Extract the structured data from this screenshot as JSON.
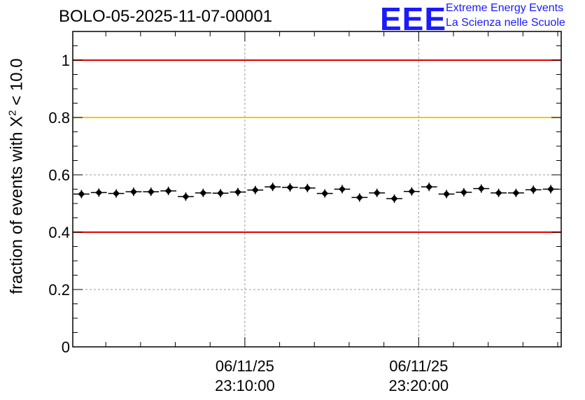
{
  "header": {
    "title": "BOLO-05-2025-11-07-00001",
    "logo_text": "EEE",
    "logo_line1": "Extreme Energy Events",
    "logo_line2": "La Scienza nelle Scuole"
  },
  "colors": {
    "threshold_red": "#e00000",
    "threshold_yellow": "#ffc000",
    "points": "#000000",
    "logo_blue": "#1a1aff",
    "grid": "#999999"
  },
  "chart_data": {
    "type": "scatter",
    "ylabel": {
      "prefix": "fraction of events with X",
      "superscript": "2",
      "suffix": " < 10.0"
    },
    "ylim": [
      0,
      1.1
    ],
    "yticks": [
      "0",
      "0.2",
      "0.4",
      "0.6",
      "0.8",
      "1"
    ],
    "ytick_values": [
      0,
      0.2,
      0.4,
      0.6,
      0.8,
      1.0
    ],
    "xlim_minutes": [
      -9.9,
      18.2
    ],
    "xticks": [
      {
        "minute": 0,
        "date": "06/11/25",
        "time": "23:10:00"
      },
      {
        "minute": 10,
        "date": "06/11/25",
        "time": "23:20:00"
      }
    ],
    "x_bin_minutes": 1,
    "horizontal_lines": [
      {
        "y": 1.0,
        "color": "red"
      },
      {
        "y": 0.8,
        "color": "yellow"
      },
      {
        "y": 0.4,
        "color": "red"
      }
    ],
    "grid": true,
    "x_minutes": [
      -9.4,
      -8.4,
      -7.4,
      -6.4,
      -5.4,
      -4.4,
      -3.4,
      -2.4,
      -1.4,
      -0.4,
      0.6,
      1.6,
      2.6,
      3.6,
      4.6,
      5.6,
      6.6,
      7.6,
      8.6,
      9.6,
      10.6,
      11.6,
      12.6,
      13.6,
      14.6,
      15.6,
      16.6,
      17.6
    ],
    "values": [
      0.533,
      0.538,
      0.535,
      0.541,
      0.541,
      0.544,
      0.524,
      0.537,
      0.536,
      0.54,
      0.547,
      0.558,
      0.556,
      0.554,
      0.535,
      0.55,
      0.521,
      0.537,
      0.517,
      0.542,
      0.558,
      0.533,
      0.539,
      0.552,
      0.537,
      0.537,
      0.548,
      0.55
    ]
  }
}
